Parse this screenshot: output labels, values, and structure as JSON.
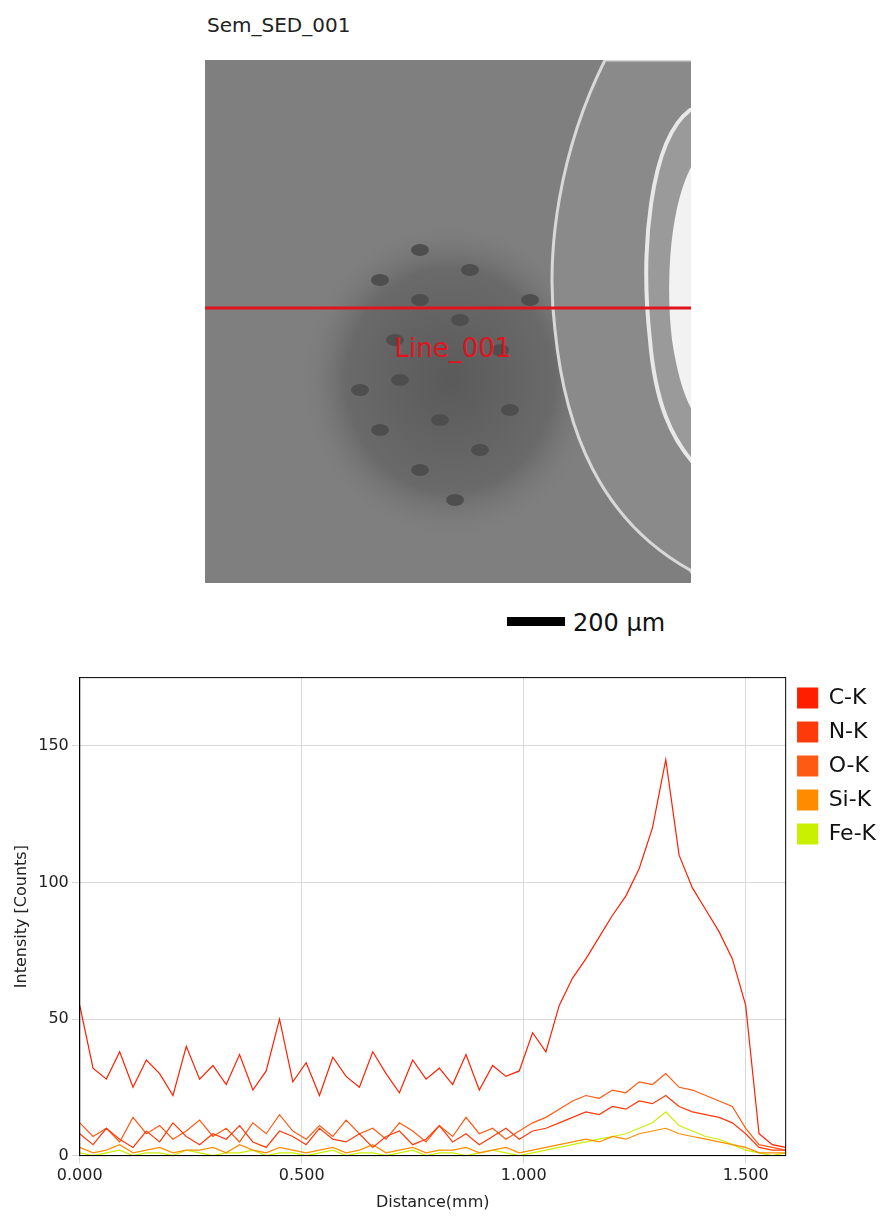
{
  "image": {
    "title": "Sem_SED_001",
    "line_label": "Line_001",
    "scale_bar": "200 µm"
  },
  "chart_data": {
    "type": "line",
    "x_label": "Distance(mm)",
    "y_label": "Intensity [Counts]",
    "x": [
      0,
      0.03,
      0.06,
      0.09,
      0.12,
      0.15,
      0.18,
      0.21,
      0.24,
      0.27,
      0.3,
      0.33,
      0.36,
      0.39,
      0.42,
      0.45,
      0.48,
      0.51,
      0.54,
      0.57,
      0.6,
      0.63,
      0.66,
      0.69,
      0.72,
      0.75,
      0.78,
      0.81,
      0.84,
      0.87,
      0.9,
      0.93,
      0.96,
      0.99,
      1.02,
      1.05,
      1.08,
      1.11,
      1.14,
      1.17,
      1.2,
      1.23,
      1.26,
      1.29,
      1.32,
      1.35,
      1.38,
      1.41,
      1.44,
      1.47,
      1.5,
      1.53,
      1.56,
      1.59
    ],
    "series": [
      {
        "name": "C-K",
        "color": "#ff1f00",
        "values": [
          55,
          32,
          28,
          38,
          25,
          35,
          30,
          22,
          40,
          28,
          33,
          26,
          37,
          24,
          31,
          50,
          27,
          34,
          22,
          36,
          29,
          25,
          38,
          30,
          23,
          35,
          28,
          32,
          26,
          37,
          24,
          33,
          29,
          31,
          45,
          38,
          55,
          65,
          72,
          80,
          88,
          95,
          105,
          120,
          145,
          110,
          98,
          90,
          82,
          72,
          55,
          8,
          4,
          3
        ]
      },
      {
        "name": "N-K",
        "color": "#ff3a0a",
        "values": [
          8,
          4,
          10,
          6,
          3,
          9,
          5,
          12,
          7,
          4,
          8,
          6,
          11,
          5,
          3,
          9,
          7,
          4,
          10,
          6,
          5,
          8,
          3,
          7,
          9,
          4,
          6,
          11,
          5,
          8,
          4,
          7,
          10,
          6,
          9,
          10,
          12,
          14,
          16,
          15,
          18,
          17,
          20,
          19,
          22,
          18,
          16,
          15,
          14,
          12,
          8,
          3,
          2,
          2
        ]
      },
      {
        "name": "O-K",
        "color": "#ff5a14",
        "values": [
          12,
          7,
          10,
          5,
          14,
          8,
          11,
          6,
          9,
          13,
          7,
          10,
          5,
          12,
          8,
          15,
          9,
          6,
          11,
          7,
          13,
          8,
          10,
          6,
          12,
          9,
          5,
          11,
          7,
          14,
          8,
          10,
          6,
          9,
          12,
          14,
          17,
          20,
          22,
          21,
          24,
          23,
          27,
          26,
          30,
          25,
          24,
          22,
          20,
          18,
          10,
          4,
          3,
          2
        ]
      },
      {
        "name": "Si-K",
        "color": "#ff8c00",
        "values": [
          3,
          1,
          2,
          4,
          1,
          2,
          3,
          1,
          2,
          2,
          3,
          1,
          4,
          2,
          1,
          3,
          2,
          1,
          2,
          3,
          1,
          2,
          4,
          1,
          2,
          3,
          1,
          2,
          2,
          3,
          1,
          2,
          3,
          1,
          2,
          3,
          4,
          5,
          6,
          5,
          7,
          6,
          8,
          9,
          10,
          8,
          7,
          6,
          5,
          4,
          3,
          1,
          1,
          1
        ]
      },
      {
        "name": "Fe-K",
        "color": "#c8f000",
        "values": [
          1,
          0,
          1,
          2,
          0,
          1,
          1,
          0,
          2,
          1,
          0,
          1,
          1,
          2,
          0,
          1,
          1,
          0,
          1,
          2,
          0,
          1,
          1,
          0,
          1,
          2,
          0,
          1,
          1,
          0,
          1,
          2,
          1,
          0,
          1,
          2,
          3,
          4,
          5,
          6,
          7,
          8,
          10,
          12,
          16,
          11,
          9,
          7,
          6,
          4,
          2,
          1,
          0,
          1
        ]
      }
    ],
    "xlim": [
      0,
      1.59
    ],
    "xticks": [
      {
        "value": 0,
        "label": "0.000"
      },
      {
        "value": 0.5,
        "label": "0.500"
      },
      {
        "value": 1,
        "label": "1.000"
      },
      {
        "value": 1.5,
        "label": "1.500"
      }
    ],
    "ylim": [
      0,
      175
    ],
    "yticks": [
      0,
      50,
      100,
      150
    ],
    "grid": true,
    "legend": "right"
  }
}
